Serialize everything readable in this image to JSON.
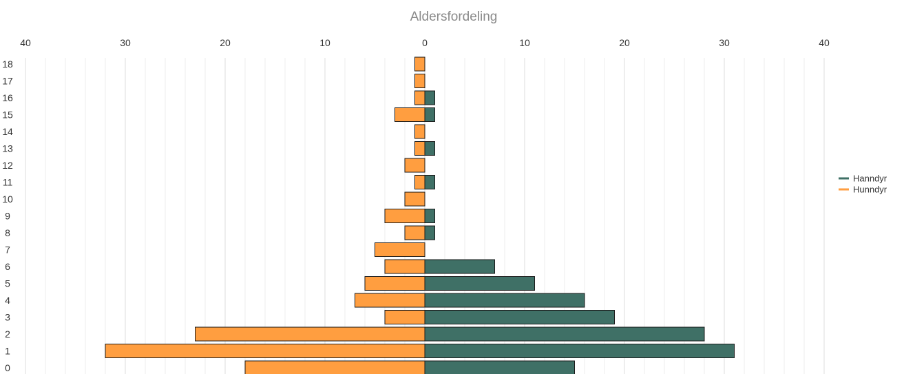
{
  "chart_data": {
    "type": "bar",
    "orientation": "horizontal",
    "layout": "population-pyramid",
    "title": "Aldersfordeling",
    "categories": [
      "0",
      "1",
      "2",
      "3",
      "4",
      "5",
      "6",
      "7",
      "8",
      "9",
      "10",
      "11",
      "12",
      "13",
      "14",
      "15",
      "16",
      "17",
      "18"
    ],
    "series": [
      {
        "name": "Hanndyr",
        "side": "right",
        "color": "#3f7066",
        "values": [
          15,
          31,
          28,
          19,
          16,
          11,
          7,
          0,
          1,
          1,
          0,
          1,
          0,
          1,
          0,
          1,
          1,
          0,
          0
        ]
      },
      {
        "name": "Hunndyr",
        "side": "left",
        "color": "#ff9e40",
        "values": [
          18,
          32,
          23,
          4,
          7,
          6,
          4,
          5,
          2,
          4,
          2,
          1,
          2,
          1,
          1,
          3,
          1,
          1,
          1
        ]
      }
    ],
    "x_ticks": [
      "40",
      "30",
      "20",
      "10",
      "0",
      "10",
      "20",
      "30",
      "40"
    ],
    "xlim": [
      -40,
      40
    ],
    "grid": true,
    "legend_position": "right"
  }
}
